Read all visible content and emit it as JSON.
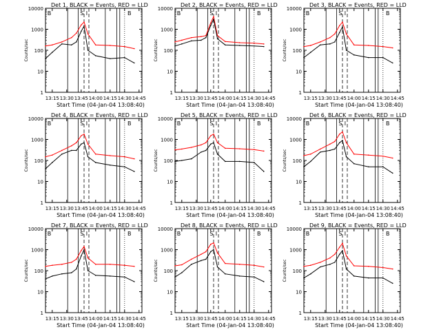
{
  "figure": {
    "ylabel": "Counts/sec",
    "xlabel": "Start Time (04-Jan-04 13:08:40)",
    "colors": {
      "events": "#000000",
      "lld": "#ff0000",
      "background": "#ffffff"
    }
  },
  "chart_data": [
    {
      "type": "line",
      "title": "Det 1, BLACK = Events, RED = LLD",
      "xlabel": "Start Time (04-Jan-04 13:08:40)",
      "ylabel": "Counts/sec",
      "x_ticks": [
        "13:15",
        "13:30",
        "13:45",
        "14:00",
        "14:15",
        "14:30",
        "14:45"
      ],
      "y_ticks": [
        "1",
        "10",
        "100",
        "1000",
        "10000"
      ],
      "ylim": [
        1,
        10000
      ],
      "y_scale": "log",
      "markers": [
        "B",
        "S",
        "I",
        "B"
      ],
      "series": [
        {
          "color": "#ff0000",
          "x": [
            "13:08",
            "13:15",
            "13:25",
            "13:35",
            "13:40",
            "13:45",
            "13:48",
            "13:52",
            "14:00",
            "14:15",
            "14:30",
            "14:40"
          ],
          "values": [
            160,
            180,
            250,
            400,
            650,
            1600,
            2200,
            600,
            180,
            170,
            150,
            120
          ]
        },
        {
          "color": "#000000",
          "x": [
            "13:08",
            "13:15",
            "13:25",
            "13:35",
            "13:40",
            "13:45",
            "13:48",
            "13:52",
            "14:00",
            "14:15",
            "14:30",
            "14:40"
          ],
          "values": [
            40,
            80,
            200,
            180,
            250,
            800,
            1400,
            100,
            55,
            40,
            45,
            25
          ]
        }
      ]
    },
    {
      "type": "line",
      "title": "Det 2, BLACK = Events, RED = LLD",
      "xlabel": "Start Time (04-Jan-04 13:08:40)",
      "ylabel": "Counts/sec",
      "x_ticks": [
        "13:15",
        "13:30",
        "13:45",
        "14:00",
        "14:15",
        "14:30",
        "14:45"
      ],
      "y_ticks": [
        "1",
        "10",
        "100",
        "1000",
        "10000"
      ],
      "ylim": [
        1,
        10000
      ],
      "y_scale": "log",
      "markers": [
        "B",
        "S",
        "I",
        "B"
      ],
      "series": [
        {
          "color": "#ff0000",
          "x": [
            "13:08",
            "13:15",
            "13:25",
            "13:35",
            "13:40",
            "13:45",
            "13:48",
            "13:52",
            "14:00",
            "14:15",
            "14:30",
            "14:40"
          ],
          "values": [
            250,
            300,
            400,
            450,
            500,
            2000,
            4000,
            500,
            260,
            230,
            220,
            200
          ]
        },
        {
          "color": "#000000",
          "x": [
            "13:08",
            "13:15",
            "13:25",
            "13:35",
            "13:40",
            "13:45",
            "13:48",
            "13:52",
            "14:00",
            "14:15",
            "14:30",
            "14:40"
          ],
          "values": [
            160,
            200,
            280,
            300,
            400,
            1500,
            3000,
            350,
            180,
            170,
            160,
            150
          ]
        }
      ]
    },
    {
      "type": "line",
      "title": "Det 3, BLACK = Events, RED = LLD",
      "xlabel": "Start Time (04-Jan-04 13:08:40)",
      "ylabel": "Counts/sec",
      "x_ticks": [
        "13:15",
        "13:30",
        "13:45",
        "14:00",
        "14:15",
        "14:30",
        "14:45"
      ],
      "y_ticks": [
        "1",
        "10",
        "100",
        "1000",
        "10000"
      ],
      "ylim": [
        1,
        10000
      ],
      "y_scale": "log",
      "markers": [
        "B",
        "S",
        "I",
        "B"
      ],
      "series": [
        {
          "color": "#ff0000",
          "x": [
            "13:08",
            "13:15",
            "13:25",
            "13:35",
            "13:40",
            "13:45",
            "13:48",
            "13:52",
            "14:00",
            "14:15",
            "14:30",
            "14:40"
          ],
          "values": [
            150,
            170,
            250,
            400,
            600,
            1500,
            2200,
            600,
            180,
            170,
            150,
            130
          ]
        },
        {
          "color": "#000000",
          "x": [
            "13:08",
            "13:15",
            "13:25",
            "13:35",
            "13:40",
            "13:45",
            "13:48",
            "13:52",
            "14:00",
            "14:15",
            "14:30",
            "14:40"
          ],
          "values": [
            45,
            80,
            180,
            200,
            250,
            700,
            1300,
            100,
            60,
            45,
            45,
            25
          ]
        }
      ]
    },
    {
      "type": "line",
      "title": "Det 4, BLACK = Events, RED = LLD",
      "xlabel": "Start Time (04-Jan-04 13:08:40)",
      "ylabel": "Counts/sec",
      "x_ticks": [
        "13:15",
        "13:30",
        "13:45",
        "14:00",
        "14:15",
        "14:30",
        "14:45"
      ],
      "y_ticks": [
        "1",
        "10",
        "100",
        "1000",
        "10000"
      ],
      "ylim": [
        1,
        10000
      ],
      "y_scale": "log",
      "markers": [
        "B",
        "S",
        "I",
        "B"
      ],
      "series": [
        {
          "color": "#ff0000",
          "x": [
            "13:08",
            "13:15",
            "13:25",
            "13:35",
            "13:40",
            "13:45",
            "13:48",
            "13:52",
            "14:00",
            "14:15",
            "14:30",
            "14:40"
          ],
          "values": [
            150,
            180,
            300,
            500,
            700,
            1500,
            1800,
            600,
            200,
            170,
            150,
            120
          ]
        },
        {
          "color": "#000000",
          "x": [
            "13:08",
            "13:15",
            "13:25",
            "13:35",
            "13:40",
            "13:45",
            "13:48",
            "13:52",
            "14:00",
            "14:15",
            "14:30",
            "14:40"
          ],
          "values": [
            40,
            80,
            200,
            300,
            300,
            600,
            700,
            150,
            80,
            60,
            50,
            30
          ]
        }
      ]
    },
    {
      "type": "line",
      "title": "Det 5, BLACK = Events, RED = LLD",
      "xlabel": "Start Time (04-Jan-04 13:08:40)",
      "ylabel": "Counts/sec",
      "x_ticks": [
        "13:15",
        "13:30",
        "13:45",
        "14:00",
        "14:15",
        "14:30",
        "14:45"
      ],
      "y_ticks": [
        "1",
        "10",
        "100",
        "1000",
        "10000"
      ],
      "ylim": [
        1,
        10000
      ],
      "y_scale": "log",
      "markers": [
        "B",
        "S",
        "I",
        "B"
      ],
      "series": [
        {
          "color": "#ff0000",
          "x": [
            "13:08",
            "13:15",
            "13:25",
            "13:35",
            "13:40",
            "13:45",
            "13:48",
            "13:52",
            "14:00",
            "14:15",
            "14:30",
            "14:40"
          ],
          "values": [
            320,
            350,
            420,
            550,
            700,
            1500,
            1800,
            700,
            380,
            360,
            330,
            280
          ]
        },
        {
          "color": "#000000",
          "x": [
            "13:08",
            "13:15",
            "13:25",
            "13:35",
            "13:40",
            "13:45",
            "13:48",
            "13:52",
            "14:00",
            "14:15",
            "14:30",
            "14:40"
          ],
          "values": [
            90,
            100,
            120,
            250,
            300,
            600,
            700,
            200,
            90,
            90,
            80,
            30
          ]
        }
      ]
    },
    {
      "type": "line",
      "title": "Det 6, BLACK = Events, RED = LLD",
      "xlabel": "Start Time (04-Jan-04 13:08:40)",
      "ylabel": "Counts/sec",
      "x_ticks": [
        "13:15",
        "13:30",
        "13:45",
        "14:00",
        "14:15",
        "14:30",
        "14:45"
      ],
      "y_ticks": [
        "1",
        "10",
        "100",
        "1000",
        "10000"
      ],
      "ylim": [
        1,
        10000
      ],
      "y_scale": "log",
      "markers": [
        "B",
        "S",
        "I",
        "B"
      ],
      "series": [
        {
          "color": "#ff0000",
          "x": [
            "13:08",
            "13:15",
            "13:25",
            "13:35",
            "13:40",
            "13:45",
            "13:48",
            "13:52",
            "14:00",
            "14:15",
            "14:30",
            "14:40"
          ],
          "values": [
            170,
            200,
            350,
            600,
            800,
            1800,
            2300,
            700,
            200,
            180,
            160,
            130
          ]
        },
        {
          "color": "#000000",
          "x": [
            "13:08",
            "13:15",
            "13:25",
            "13:35",
            "13:40",
            "13:45",
            "13:48",
            "13:52",
            "14:00",
            "14:15",
            "14:30",
            "14:40"
          ],
          "values": [
            50,
            90,
            250,
            300,
            350,
            700,
            900,
            150,
            70,
            50,
            50,
            25
          ]
        }
      ]
    },
    {
      "type": "line",
      "title": "Det 7, BLACK = Events, RED = LLD",
      "xlabel": "Start Time (04-Jan-04 13:08:40)",
      "ylabel": "Counts/sec",
      "x_ticks": [
        "13:15",
        "13:30",
        "13:45",
        "14:00",
        "14:15",
        "14:30",
        "14:45"
      ],
      "y_ticks": [
        "1",
        "10",
        "100",
        "1000",
        "10000"
      ],
      "ylim": [
        1,
        10000
      ],
      "y_scale": "log",
      "markers": [
        "B",
        "S",
        "I",
        "B"
      ],
      "series": [
        {
          "color": "#ff0000",
          "x": [
            "13:08",
            "13:15",
            "13:25",
            "13:35",
            "13:40",
            "13:45",
            "13:48",
            "13:52",
            "14:00",
            "14:15",
            "14:30",
            "14:40"
          ],
          "values": [
            160,
            180,
            200,
            250,
            350,
            900,
            1400,
            400,
            200,
            200,
            180,
            160
          ]
        },
        {
          "color": "#000000",
          "x": [
            "13:08",
            "13:15",
            "13:25",
            "13:35",
            "13:40",
            "13:45",
            "13:48",
            "13:52",
            "14:00",
            "14:15",
            "14:30",
            "14:40"
          ],
          "values": [
            40,
            55,
            70,
            80,
            120,
            500,
            1000,
            100,
            60,
            55,
            50,
            30
          ]
        }
      ]
    },
    {
      "type": "line",
      "title": "Det 8, BLACK = Events, RED = LLD",
      "xlabel": "Start Time (04-Jan-04 13:08:40)",
      "ylabel": "Counts/sec",
      "x_ticks": [
        "13:15",
        "13:30",
        "13:45",
        "14:00",
        "14:15",
        "14:30",
        "14:45"
      ],
      "y_ticks": [
        "1",
        "10",
        "100",
        "1000",
        "10000"
      ],
      "ylim": [
        1,
        10000
      ],
      "y_scale": "log",
      "markers": [
        "B",
        "S",
        "I",
        "B"
      ],
      "series": [
        {
          "color": "#ff0000",
          "x": [
            "13:08",
            "13:15",
            "13:25",
            "13:35",
            "13:40",
            "13:45",
            "13:48",
            "13:52",
            "14:00",
            "14:15",
            "14:30",
            "14:40"
          ],
          "values": [
            170,
            190,
            350,
            600,
            800,
            1800,
            2100,
            700,
            220,
            200,
            180,
            150
          ]
        },
        {
          "color": "#000000",
          "x": [
            "13:08",
            "13:15",
            "13:25",
            "13:35",
            "13:40",
            "13:45",
            "13:48",
            "13:52",
            "14:00",
            "14:15",
            "14:30",
            "14:40"
          ],
          "values": [
            50,
            80,
            200,
            300,
            350,
            800,
            1000,
            150,
            70,
            55,
            50,
            30
          ]
        }
      ]
    },
    {
      "type": "line",
      "title": "Det 9, BLACK = Events, RED = LLD",
      "xlabel": "Start Time (04-Jan-04 13:08:40)",
      "ylabel": "Counts/sec",
      "x_ticks": [
        "13:15",
        "13:30",
        "13:45",
        "14:00",
        "14:15",
        "14:30",
        "14:45"
      ],
      "y_ticks": [
        "1",
        "10",
        "100",
        "1000",
        "10000"
      ],
      "ylim": [
        1,
        10000
      ],
      "y_scale": "log",
      "markers": [
        "B",
        "S",
        "I",
        "B"
      ],
      "series": [
        {
          "color": "#ff0000",
          "x": [
            "13:08",
            "13:15",
            "13:25",
            "13:35",
            "13:40",
            "13:45",
            "13:48",
            "13:52",
            "14:00",
            "14:15",
            "14:30",
            "14:40"
          ],
          "values": [
            160,
            180,
            250,
            400,
            600,
            1300,
            2000,
            500,
            170,
            160,
            140,
            120
          ]
        },
        {
          "color": "#000000",
          "x": [
            "13:08",
            "13:15",
            "13:25",
            "13:35",
            "13:40",
            "13:45",
            "13:48",
            "13:52",
            "14:00",
            "14:15",
            "14:30",
            "14:40"
          ],
          "values": [
            45,
            70,
            150,
            200,
            250,
            600,
            900,
            120,
            55,
            45,
            45,
            25
          ]
        }
      ]
    }
  ]
}
